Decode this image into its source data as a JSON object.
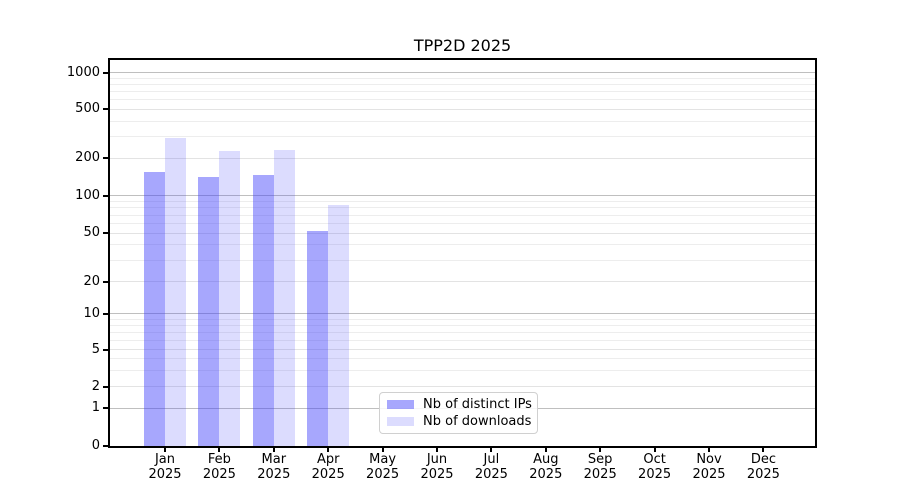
{
  "chart_data": {
    "type": "bar",
    "title": "TPP2D 2025",
    "x_tick_labels": [
      [
        "Jan",
        "2025"
      ],
      [
        "Feb",
        "2025"
      ],
      [
        "Mar",
        "2025"
      ],
      [
        "Apr",
        "2025"
      ],
      [
        "May",
        "2025"
      ],
      [
        "Jun",
        "2025"
      ],
      [
        "Jul",
        "2025"
      ],
      [
        "Aug",
        "2025"
      ],
      [
        "Sep",
        "2025"
      ],
      [
        "Oct",
        "2025"
      ],
      [
        "Nov",
        "2025"
      ],
      [
        "Dec",
        "2025"
      ]
    ],
    "series": [
      {
        "name": "Nb of distinct IPs",
        "values": [
          155,
          141,
          146,
          52,
          0,
          0,
          0,
          0,
          0,
          0,
          0,
          0
        ]
      },
      {
        "name": "Nb of downloads",
        "values": [
          290,
          231,
          232,
          84,
          0,
          0,
          0,
          0,
          0,
          0,
          0,
          0
        ]
      }
    ],
    "y_axis": {
      "scale": "symlog",
      "ticks": [
        0,
        1,
        2,
        5,
        10,
        20,
        50,
        100,
        200,
        500,
        1000
      ],
      "minor_gridlines": [
        3,
        4,
        6,
        7,
        8,
        9,
        30,
        40,
        60,
        70,
        80,
        90,
        300,
        400,
        600,
        700,
        800,
        900
      ]
    },
    "legend": {
      "entries": [
        "Nb of distinct IPs",
        "Nb of downloads"
      ],
      "position": "inside-bottom-left-of-center"
    },
    "grid": true,
    "ylim": [
      0,
      1280
    ]
  },
  "colors": {
    "background": "#ffffff",
    "bar_distinct_ips": "rgba(60,60,250,0.45)",
    "bar_downloads": "rgba(60,60,250,0.18)",
    "grid_decade": "#bfbfbf",
    "grid_light": "#e3e3e3",
    "grid_minor": "#ededed",
    "axis": "#000000",
    "text": "#000000",
    "legend_border": "#d0d0d0"
  }
}
